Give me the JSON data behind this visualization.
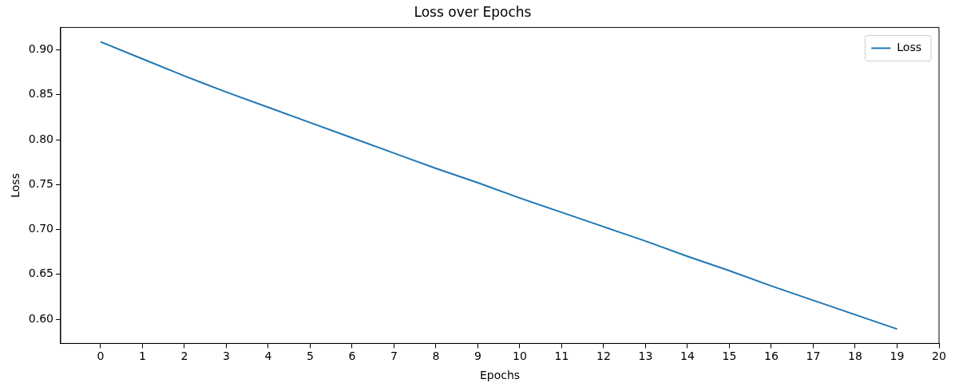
{
  "chart_data": {
    "type": "line",
    "title": "Loss over Epochs",
    "xlabel": "Epochs",
    "ylabel": "Loss",
    "x": [
      0,
      1,
      2,
      3,
      4,
      5,
      6,
      7,
      8,
      9,
      10,
      11,
      12,
      13,
      14,
      15,
      16,
      17,
      18,
      19
    ],
    "series": [
      {
        "name": "Loss",
        "color": "#1f77b4",
        "values": [
          0.909,
          0.89,
          0.871,
          0.853,
          0.836,
          0.819,
          0.802,
          0.785,
          0.768,
          0.752,
          0.735,
          0.719,
          0.703,
          0.687,
          0.67,
          0.654,
          0.637,
          0.621,
          0.605,
          0.589
        ]
      }
    ],
    "xlim": [
      -0.95,
      20
    ],
    "xticks": [
      0,
      1,
      2,
      3,
      4,
      5,
      6,
      7,
      8,
      9,
      10,
      11,
      12,
      13,
      14,
      15,
      16,
      17,
      18,
      19,
      20
    ],
    "ylim": [
      0.573,
      0.925
    ],
    "yticks": [
      {
        "value": 0.6,
        "label": "0.60"
      },
      {
        "value": 0.65,
        "label": "0.65"
      },
      {
        "value": 0.7,
        "label": "0.70"
      },
      {
        "value": 0.75,
        "label": "0.75"
      },
      {
        "value": 0.8,
        "label": "0.80"
      },
      {
        "value": 0.85,
        "label": "0.85"
      },
      {
        "value": 0.9,
        "label": "0.90"
      }
    ],
    "grid": false,
    "legend": "top right",
    "marker": "none",
    "line_style": "solid"
  }
}
